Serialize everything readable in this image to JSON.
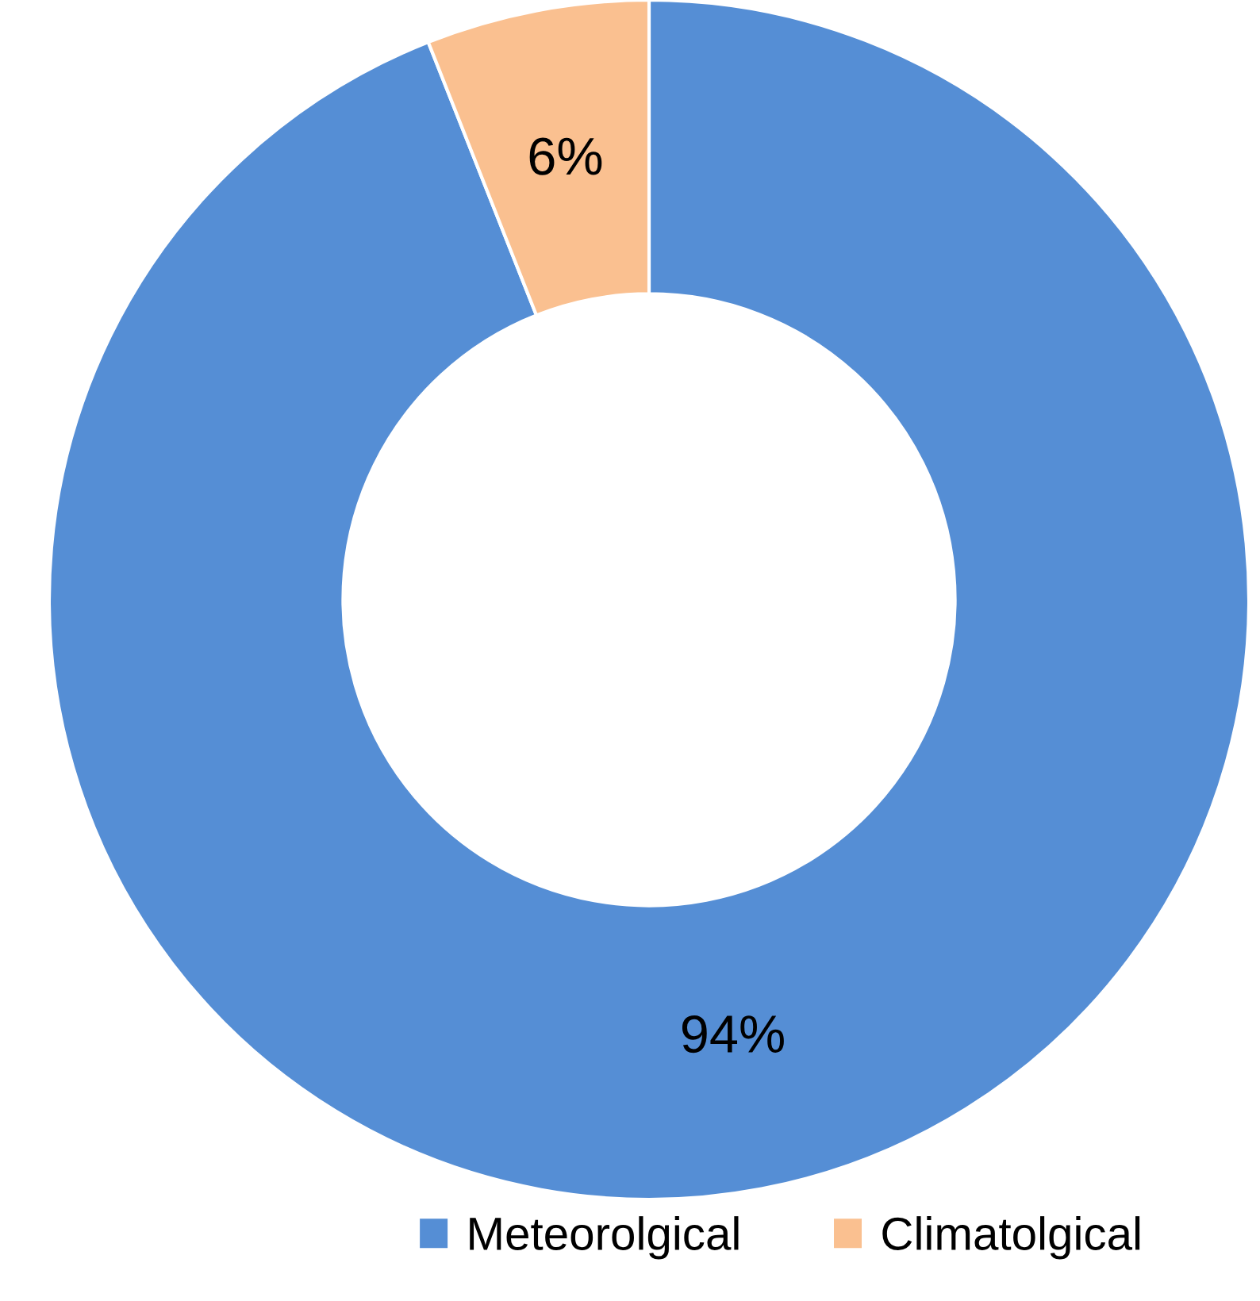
{
  "chart_data": {
    "type": "donut",
    "categories": [
      "Meteorolgical",
      "Climatolgical"
    ],
    "values": [
      94,
      6
    ],
    "colors": [
      "#558ed5",
      "#fac090"
    ],
    "value_labels": [
      "94%",
      "6%"
    ],
    "legend": "bottom"
  }
}
